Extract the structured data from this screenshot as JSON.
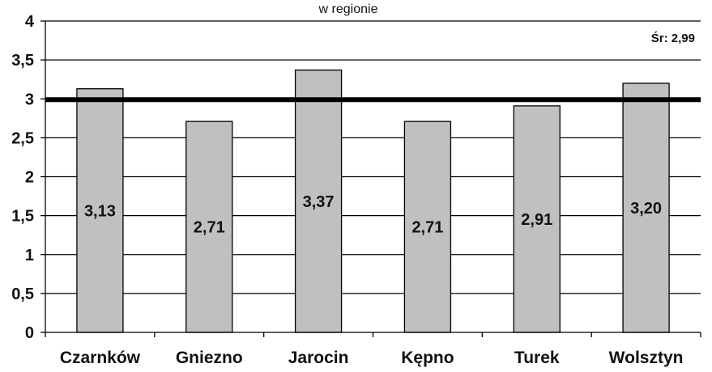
{
  "chart_data": {
    "type": "bar",
    "title": "w regionie",
    "categories": [
      "Czarnków",
      "Gniezno",
      "Jarocin",
      "Kępno",
      "Turek",
      "Wolsztyn"
    ],
    "values": [
      3.13,
      2.71,
      3.37,
      2.71,
      2.91,
      3.2
    ],
    "value_labels": [
      "3,13",
      "2,71",
      "3,37",
      "2,71",
      "2,91",
      "3,20"
    ],
    "ylim": [
      0,
      4
    ],
    "y_ticks": [
      "0",
      "0,5",
      "1",
      "1,5",
      "2",
      "2,5",
      "3",
      "3,5",
      "4"
    ],
    "average": {
      "value": 2.99,
      "label": "Śr: 2,99"
    },
    "bar_color": "#c0c0c0",
    "grid": true
  }
}
